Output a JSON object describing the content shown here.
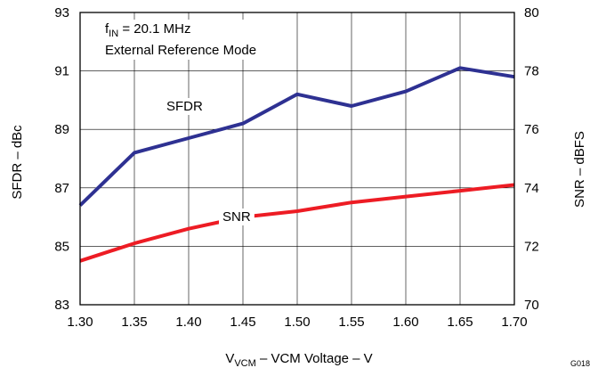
{
  "chart_data": {
    "type": "line",
    "annotation_line1": {
      "main": "f",
      "sub": "IN",
      "rest": " = 20.1 MHz"
    },
    "annotation_line2": "External Reference Mode",
    "xlabel": {
      "main": "V",
      "sub": "VCM",
      "rest": " – VCM Voltage – V"
    },
    "ylabel_left": "SFDR – dBc",
    "ylabel_right": "SNR – dBFS",
    "figure_id": "G018",
    "x": [
      1.3,
      1.35,
      1.4,
      1.45,
      1.5,
      1.55,
      1.6,
      1.65,
      1.7
    ],
    "x_tick_labels": [
      "1.30",
      "1.35",
      "1.40",
      "1.45",
      "1.50",
      "1.55",
      "1.60",
      "1.65",
      "1.70"
    ],
    "xlim": [
      1.3,
      1.7
    ],
    "ylim_left": [
      83,
      93
    ],
    "y_left_ticks": [
      83,
      85,
      87,
      89,
      91,
      93
    ],
    "ylim_right": [
      70,
      80
    ],
    "y_right_ticks": [
      70,
      72,
      74,
      76,
      78,
      80
    ],
    "grid": true,
    "series": [
      {
        "name": "SFDR",
        "axis": "left",
        "color": "#2e3192",
        "values": [
          86.4,
          88.2,
          88.7,
          89.2,
          90.2,
          89.8,
          90.3,
          91.1,
          90.8
        ]
      },
      {
        "name": "SNR",
        "axis": "right",
        "color": "#ed1c24",
        "values": [
          71.5,
          72.1,
          72.6,
          73.0,
          73.2,
          73.5,
          73.7,
          73.9,
          74.1
        ]
      }
    ]
  }
}
